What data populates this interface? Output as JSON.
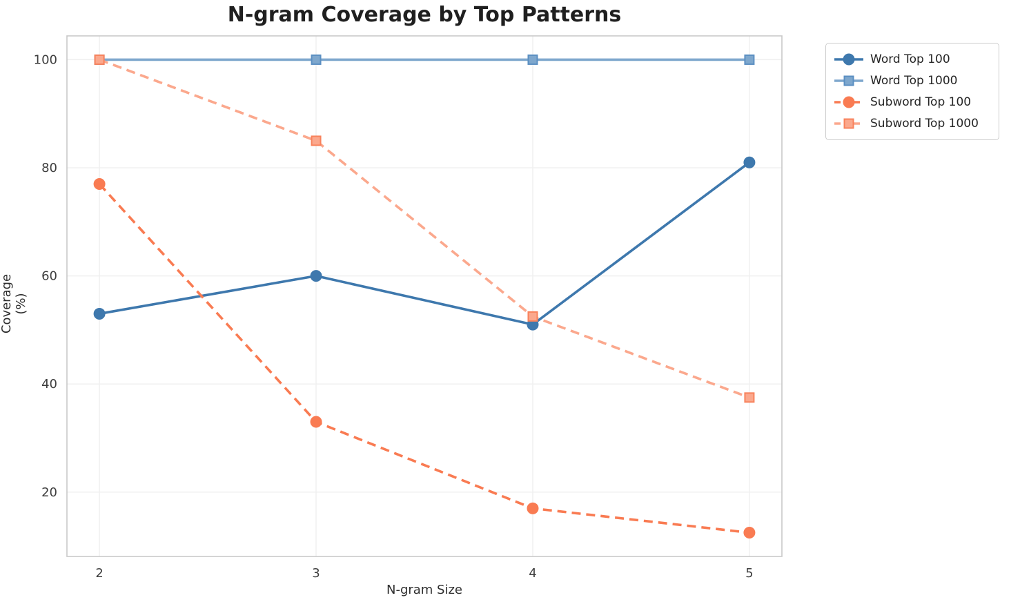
{
  "chart_data": {
    "type": "line",
    "title": "N-gram Coverage by Top Patterns",
    "xlabel": "N-gram Size",
    "ylabel": "Coverage (%)",
    "x": [
      2,
      3,
      4,
      5
    ],
    "xtick_labels": [
      "2",
      "3",
      "4",
      "5"
    ],
    "ytick_values": [
      20,
      40,
      60,
      80,
      100
    ],
    "ytick_labels": [
      "20",
      "40",
      "60",
      "80",
      "100"
    ],
    "xlim": [
      1.85,
      5.15
    ],
    "ylim": [
      8.1,
      104.4
    ],
    "grid": true,
    "legend_position": "outside-upper-right",
    "series": [
      {
        "name": "Word Top 100",
        "values": [
          53,
          60,
          51,
          81
        ],
        "color": "#3e78ad",
        "marker": "circle",
        "marker_edge": "#3e78ad",
        "dashed": false
      },
      {
        "name": "Word Top 1000",
        "values": [
          100,
          100,
          100,
          100
        ],
        "color": "#7ea7cd",
        "marker": "square",
        "marker_edge": "#5b8fc2",
        "dashed": false
      },
      {
        "name": "Subword Top 100",
        "values": [
          77,
          33,
          17,
          12.5
        ],
        "color": "#f97b52",
        "marker": "circle",
        "marker_edge": "#f97b52",
        "dashed": true
      },
      {
        "name": "Subword Top 1000",
        "values": [
          100,
          85,
          52.5,
          37.5
        ],
        "color": "#fba88d",
        "marker": "square",
        "marker_edge": "#f8825c",
        "dashed": true
      }
    ],
    "style": {
      "background": "#ffffff",
      "grid_color": "#efefef",
      "spine_color": "#c9c9c9",
      "title_color": "#1f1f1f",
      "tick_color": "#3d3d3d",
      "legend_border_color": "#cccccc"
    }
  }
}
